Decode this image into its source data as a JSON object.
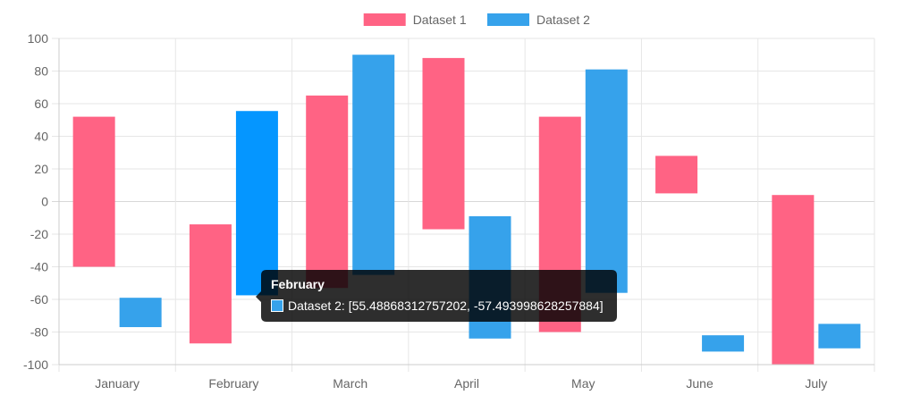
{
  "chart_data": {
    "type": "bar",
    "bar_mode": "floating",
    "categories": [
      "January",
      "February",
      "March",
      "April",
      "May",
      "June",
      "July"
    ],
    "series": [
      {
        "name": "Dataset 1",
        "color": "#ff6384",
        "ranges": [
          [
            -40,
            52
          ],
          [
            -87,
            -14
          ],
          [
            -53,
            65
          ],
          [
            -17,
            88
          ],
          [
            -80,
            52
          ],
          [
            5,
            28
          ],
          [
            -100,
            4
          ]
        ]
      },
      {
        "name": "Dataset 2",
        "color": "#36a2eb",
        "ranges": [
          [
            -77,
            -59
          ],
          [
            -57.493998628257884,
            55.48868312757202
          ],
          [
            -45,
            90
          ],
          [
            -84,
            -9
          ],
          [
            -56,
            81
          ],
          [
            -92,
            -82
          ],
          [
            -90,
            -75
          ]
        ]
      }
    ],
    "ylim": [
      -100,
      100
    ],
    "y_ticks": [
      "100",
      "80",
      "60",
      "40",
      "20",
      "0",
      "-20",
      "-40",
      "-60",
      "-80",
      "-100"
    ],
    "grid": true,
    "legend_position": "top",
    "highlight": {
      "series_index": 1,
      "category_index": 1,
      "color": "#0596ff"
    },
    "tooltip": {
      "title": "February",
      "body": "Dataset 2: [55.48868312757202, -57.493998628257884]",
      "swatch_color": "#36a2eb"
    }
  }
}
